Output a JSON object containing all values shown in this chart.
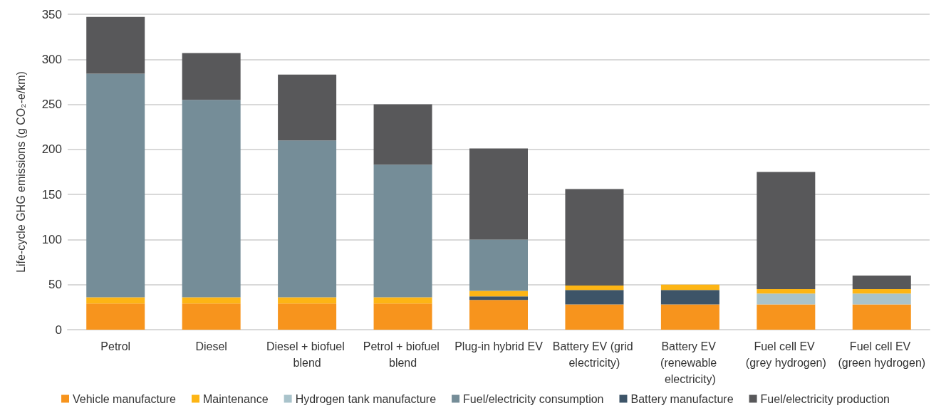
{
  "chart_data": {
    "type": "bar",
    "stacked": true,
    "ylabel": "Life-cycle GHG emissions (g CO₂-e/km)",
    "categories": [
      "Petrol",
      "Diesel",
      "Diesel + biofuel blend",
      "Petrol + biofuel blend",
      "Plug-in hybrid EV",
      "Battery EV (grid electricity)",
      "Battery EV (renewable electricity)",
      "Fuel cell EV (grey hydrogen)",
      "Fuel cell EV (green hydrogen)"
    ],
    "series": [
      {
        "name": "Vehicle manufacture",
        "color": "#f7941d",
        "values": [
          29,
          29,
          29,
          29,
          33,
          28,
          28,
          28,
          28
        ]
      },
      {
        "name": "Battery manufacture",
        "color": "#3d5468",
        "values": [
          0,
          0,
          0,
          0,
          4,
          16,
          16,
          0,
          0
        ]
      },
      {
        "name": "Hydrogen tank manufacture",
        "color": "#a9c3cb",
        "values": [
          0,
          0,
          0,
          0,
          0,
          0,
          0,
          12,
          12
        ]
      },
      {
        "name": "Maintenance",
        "color": "#fdb515",
        "values": [
          7,
          7,
          7,
          7,
          6,
          5,
          6,
          5,
          5
        ]
      },
      {
        "name": "Fuel/electricity consumption",
        "color": "#758d98",
        "values": [
          248,
          219,
          174,
          147,
          57,
          0,
          0,
          0,
          0
        ]
      },
      {
        "name": "Fuel/electricity production",
        "color": "#58585a",
        "values": [
          63,
          52,
          73,
          67,
          101,
          107,
          0,
          130,
          15
        ]
      }
    ],
    "ylim": [
      0,
      350
    ],
    "yticks": [
      0,
      50,
      100,
      150,
      200,
      250,
      300,
      350
    ],
    "grid": "y",
    "legend": "bottom"
  }
}
